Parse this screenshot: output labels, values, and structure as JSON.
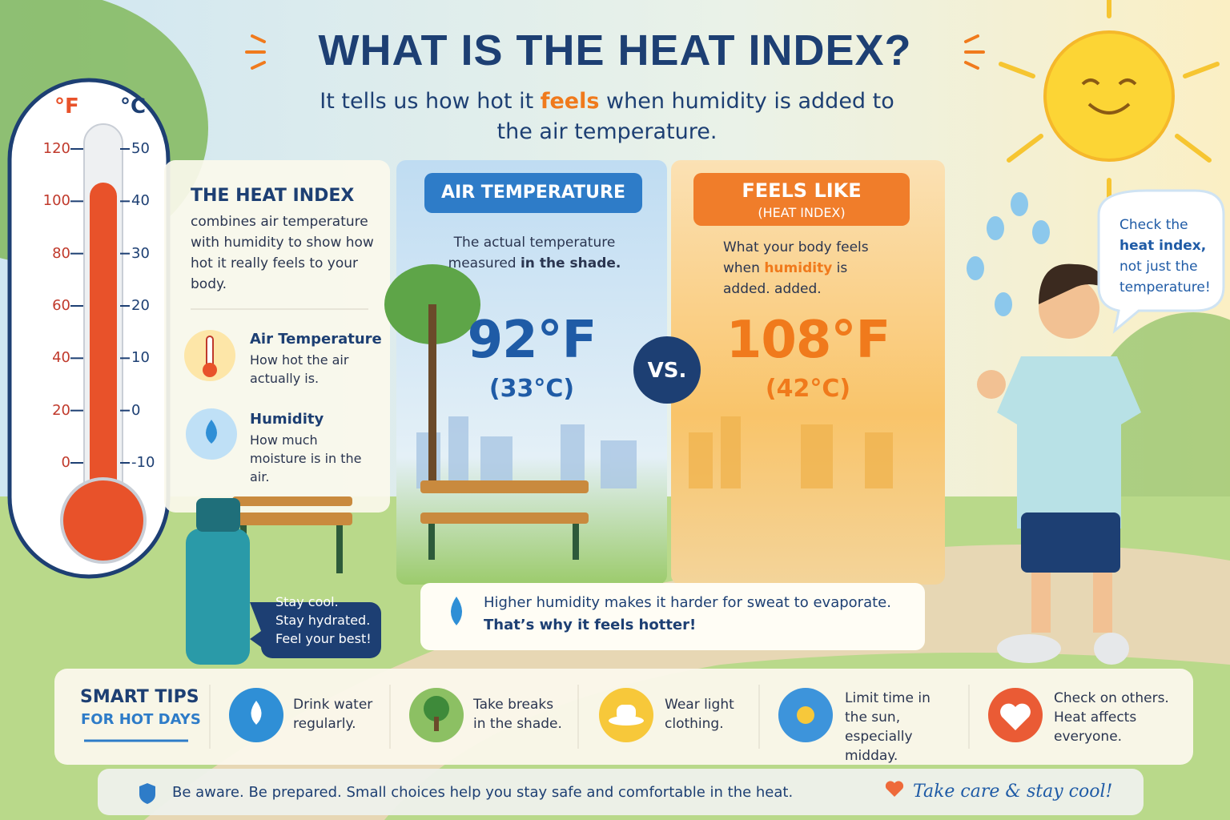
{
  "header": {
    "title": "WHAT IS THE HEAT INDEX?",
    "subtitle": [
      "It tells us how hot it ",
      "feels",
      " when humidity is added to the air temperature."
    ]
  },
  "thermometer": {
    "f_unit": "°F",
    "c_unit": "°C",
    "f_ticks": [
      120,
      100,
      80,
      60,
      40,
      20,
      0
    ],
    "c_ticks": [
      50,
      40,
      30,
      20,
      10,
      0,
      -10
    ]
  },
  "info_panel": {
    "title": "THE HEAT INDEX",
    "text": "combines air temperature with humidity to show how hot it really feels to your body.",
    "items": [
      {
        "title": "Air Temperature",
        "text": "How hot the air actually is."
      },
      {
        "title": "Humidity",
        "text": "How much moisture is in the air."
      }
    ]
  },
  "bottle_bubble": {
    "lines": [
      "Stay cool.",
      "Stay hydrated.",
      "Feel your best!"
    ]
  },
  "air_panel": {
    "badge": "AIR TEMPERATURE",
    "text": [
      "The actual temperature measured ",
      "in the shade."
    ],
    "value": "92°F",
    "celsius": "(33°C)"
  },
  "vs": "VS.",
  "feels_panel": {
    "badge": "FEELS LIKE",
    "badge_sub": "(HEAT INDEX)",
    "text": [
      "What your body feels when ",
      "humidity",
      " is added. added."
    ],
    "value": "108°F",
    "celsius": "(42°C)"
  },
  "note": {
    "line1": "Higher humidity makes it harder for sweat to evaporate.",
    "line2": "That’s why it feels hotter!"
  },
  "speech": {
    "text": [
      "Check the ",
      "heat index,",
      " not just the temperature!"
    ]
  },
  "tips": {
    "title": "SMART TIPS",
    "subtitle": "FOR HOT DAYS",
    "items": [
      "Drink water regularly.",
      "Take breaks in the shade.",
      "Wear light clothing.",
      "Limit time in the sun, especially midday.",
      "Check on others. Heat affects everyone."
    ]
  },
  "footer": {
    "text": "Be aware. Be prepared. Small choices help you stay safe and comfortable in the heat.",
    "signoff": "Take care & stay cool!"
  }
}
